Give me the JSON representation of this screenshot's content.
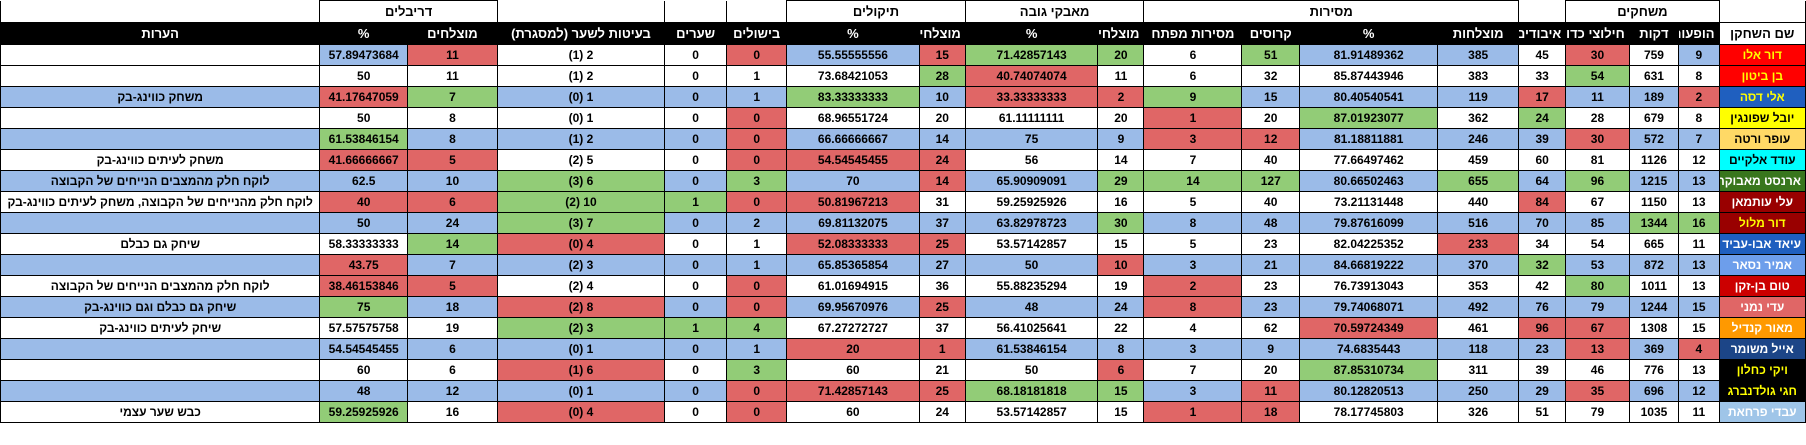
{
  "colors": {
    "blue": "#9bbbe8",
    "green": "#92cc77",
    "red": "#e06666",
    "white": "#ffffff"
  },
  "groups": [
    "משחקים",
    "מסירות",
    "מאבקי גובה",
    "תיקולים",
    "דריבלים"
  ],
  "headers": [
    "שם השחקן",
    "הופעות",
    "דקות",
    "חילוצי כדור",
    "איבודים",
    "מוצלחות",
    "%",
    "קרוסים",
    "מסירות מפתח",
    "מוצלחים",
    "%",
    "מוצלחים",
    "%",
    "בישולים",
    "שערים",
    "בעיטות לשער (למסגרת)",
    "מוצלחים",
    "%",
    "הערות"
  ],
  "players": [
    {
      "name": "דור אלו",
      "name_bg": "#ff0000",
      "name_fg": "#ffff00",
      "cells": [
        "9",
        "759",
        "30",
        "45",
        "385",
        "81.91489362",
        "51",
        "6",
        "20",
        "71.42857143",
        "15",
        "55.55555556",
        "0",
        "0",
        "2 (1)",
        "11",
        "57.89473684",
        ""
      ],
      "colors": [
        "b",
        "w",
        "r",
        "w",
        "b",
        "b",
        "g",
        "w",
        "g",
        "g",
        "r",
        "b",
        "r",
        "w",
        "w",
        "r",
        "b",
        "w"
      ]
    },
    {
      "name": "בן ביטון",
      "name_bg": "#ff0000",
      "name_fg": "#ffff00",
      "cells": [
        "8",
        "631",
        "54",
        "33",
        "383",
        "85.87443946",
        "32",
        "6",
        "11",
        "40.74074074",
        "28",
        "73.68421053",
        "1",
        "0",
        "2 (1)",
        "11",
        "50",
        ""
      ],
      "colors": [
        "w",
        "w",
        "g",
        "w",
        "w",
        "w",
        "w",
        "w",
        "w",
        "r",
        "g",
        "w",
        "w",
        "w",
        "w",
        "w",
        "w",
        "w"
      ]
    },
    {
      "name": "אלי דסה",
      "name_bg": "#1f5fbf",
      "name_fg": "#ffff00",
      "cells": [
        "2",
        "189",
        "11",
        "17",
        "119",
        "80.40540541",
        "15",
        "9",
        "2",
        "33.33333333",
        "10",
        "83.33333333",
        "1",
        "0",
        "1 (0)",
        "7",
        "41.17647059",
        "משחק כווינג-בק"
      ],
      "colors": [
        "r",
        "b",
        "b",
        "r",
        "b",
        "b",
        "b",
        "g",
        "r",
        "r",
        "b",
        "g",
        "b",
        "b",
        "b",
        "g",
        "r",
        "b"
      ]
    },
    {
      "name": "יובל שפונגין",
      "name_bg": "#ffff00",
      "name_fg": "#000000",
      "cells": [
        "8",
        "679",
        "28",
        "24",
        "362",
        "87.01923077",
        "20",
        "1",
        "20",
        "61.11111111",
        "20",
        "68.96551724",
        "0",
        "0",
        "1 (0)",
        "8",
        "50",
        ""
      ],
      "colors": [
        "w",
        "w",
        "w",
        "g",
        "w",
        "g",
        "w",
        "r",
        "w",
        "w",
        "w",
        "w",
        "r",
        "w",
        "w",
        "w",
        "w",
        "w"
      ]
    },
    {
      "name": "עופר ורטה",
      "name_bg": "#ffd966",
      "name_fg": "#000000",
      "cells": [
        "7",
        "572",
        "30",
        "39",
        "246",
        "81.18811881",
        "12",
        "3",
        "9",
        "75",
        "14",
        "66.66666667",
        "0",
        "0",
        "2 (1)",
        "8",
        "61.53846154",
        ""
      ],
      "colors": [
        "b",
        "b",
        "r",
        "b",
        "b",
        "b",
        "r",
        "r",
        "b",
        "b",
        "b",
        "b",
        "r",
        "b",
        "b",
        "b",
        "g",
        "b"
      ]
    },
    {
      "name": "עודד אלקיים",
      "name_bg": "#00ffff",
      "name_fg": "#000000",
      "cells": [
        "12",
        "1126",
        "81",
        "60",
        "459",
        "77.66497462",
        "40",
        "7",
        "14",
        "56",
        "24",
        "54.54545455",
        "0",
        "0",
        "5 (2)",
        "5",
        "41.66666667",
        "משחק לעיתים כווינג-בק"
      ],
      "colors": [
        "w",
        "w",
        "w",
        "w",
        "w",
        "w",
        "w",
        "w",
        "w",
        "w",
        "r",
        "r",
        "r",
        "w",
        "w",
        "r",
        "r",
        "w"
      ]
    },
    {
      "name": "ארנסט מאבוקה",
      "name_bg": "#38761d",
      "name_fg": "#ffffff",
      "cells": [
        "13",
        "1215",
        "96",
        "64",
        "655",
        "80.66502463",
        "127",
        "14",
        "29",
        "65.90909091",
        "14",
        "70",
        "3",
        "0",
        "6 (3)",
        "10",
        "62.5",
        "לוקח חלק מהמצבים הנייחים של הקבוצה"
      ],
      "colors": [
        "b",
        "b",
        "g",
        "b",
        "g",
        "b",
        "g",
        "g",
        "g",
        "b",
        "r",
        "b",
        "g",
        "b",
        "g",
        "b",
        "b",
        "b"
      ]
    },
    {
      "name": "עלי עותמאן",
      "name_bg": "#990000",
      "name_fg": "#ffffff",
      "cells": [
        "13",
        "1150",
        "67",
        "84",
        "440",
        "73.21131448",
        "40",
        "5",
        "16",
        "59.25925926",
        "31",
        "50.81967213",
        "0",
        "1",
        "10 (2)",
        "6",
        "40",
        "לוקח חלק מהנייחים של הקבוצה, משחק לעיתים כווינג-בק"
      ],
      "colors": [
        "w",
        "w",
        "w",
        "r",
        "w",
        "w",
        "w",
        "w",
        "w",
        "w",
        "w",
        "r",
        "r",
        "g",
        "g",
        "r",
        "r",
        "w"
      ]
    },
    {
      "name": "דור מלול",
      "name_bg": "#990000",
      "name_fg": "#ffff00",
      "cells": [
        "16",
        "1344",
        "85",
        "70",
        "516",
        "79.87616099",
        "48",
        "8",
        "30",
        "63.82978723",
        "37",
        "69.81132075",
        "2",
        "0",
        "7 (3)",
        "24",
        "50",
        ""
      ],
      "colors": [
        "g",
        "g",
        "b",
        "b",
        "b",
        "b",
        "b",
        "b",
        "g",
        "b",
        "b",
        "b",
        "b",
        "b",
        "g",
        "b",
        "b",
        "b"
      ]
    },
    {
      "name": "עיאד אבו-עביד",
      "name_bg": "#1f5fbf",
      "name_fg": "#ffffff",
      "cells": [
        "11",
        "665",
        "54",
        "34",
        "233",
        "82.04225352",
        "23",
        "5",
        "15",
        "53.57142857",
        "25",
        "52.08333333",
        "1",
        "0",
        "4 (0)",
        "14",
        "58.33333333",
        "שיחק גם כבלם"
      ],
      "colors": [
        "w",
        "w",
        "w",
        "w",
        "r",
        "w",
        "w",
        "w",
        "w",
        "w",
        "r",
        "r",
        "w",
        "w",
        "r",
        "g",
        "w",
        "w"
      ]
    },
    {
      "name": "אמיר נסאר",
      "name_bg": "#6d9eeb",
      "name_fg": "#ffffff",
      "cells": [
        "13",
        "872",
        "53",
        "32",
        "370",
        "84.66819222",
        "21",
        "3",
        "10",
        "50",
        "27",
        "65.85365854",
        "1",
        "0",
        "3 (2)",
        "7",
        "43.75",
        ""
      ],
      "colors": [
        "b",
        "b",
        "b",
        "g",
        "b",
        "b",
        "b",
        "b",
        "r",
        "b",
        "b",
        "b",
        "b",
        "b",
        "b",
        "b",
        "r",
        "b"
      ]
    },
    {
      "name": "טום בן-זקן",
      "name_bg": "#cc0000",
      "name_fg": "#ffffff",
      "cells": [
        "13",
        "1011",
        "80",
        "42",
        "353",
        "76.73913043",
        "23",
        "2",
        "19",
        "55.88235294",
        "36",
        "61.01694915",
        "0",
        "0",
        "4 (2)",
        "5",
        "38.46153846",
        "לוקח חלק מהמצבים הנייחים של הקבוצה"
      ],
      "colors": [
        "w",
        "w",
        "g",
        "w",
        "w",
        "w",
        "w",
        "r",
        "w",
        "w",
        "w",
        "w",
        "r",
        "w",
        "w",
        "r",
        "r",
        "w"
      ]
    },
    {
      "name": "עדי נמני",
      "name_bg": "#e06666",
      "name_fg": "#ffffff",
      "cells": [
        "15",
        "1244",
        "79",
        "76",
        "492",
        "79.74068071",
        "23",
        "8",
        "24",
        "48",
        "25",
        "69.95670976",
        "0",
        "0",
        "8 (2)",
        "18",
        "75",
        "שיחק גם כבלם וגם כווינג-בק"
      ],
      "colors": [
        "b",
        "b",
        "b",
        "b",
        "b",
        "b",
        "b",
        "r",
        "b",
        "b",
        "r",
        "b",
        "r",
        "b",
        "r",
        "b",
        "g",
        "b"
      ]
    },
    {
      "name": "מאור קנדיל",
      "name_bg": "#ff9900",
      "name_fg": "#ffffff",
      "cells": [
        "15",
        "1308",
        "67",
        "96",
        "461",
        "70.59724349",
        "62",
        "4",
        "22",
        "56.41025641",
        "37",
        "67.27272727",
        "4",
        "1",
        "3 (2)",
        "19",
        "57.57575758",
        "שיחק לעיתים כווינג-בק"
      ],
      "colors": [
        "w",
        "w",
        "r",
        "r",
        "w",
        "r",
        "w",
        "w",
        "w",
        "w",
        "w",
        "w",
        "g",
        "g",
        "g",
        "w",
        "w",
        "w"
      ]
    },
    {
      "name": "אייל משומר",
      "name_bg": "#1c4587",
      "name_fg": "#ffffff",
      "cells": [
        "4",
        "369",
        "13",
        "23",
        "118",
        "74.6835443",
        "9",
        "3",
        "8",
        "61.53846154",
        "1",
        "20",
        "1",
        "0",
        "1 (0)",
        "6",
        "54.54545455",
        ""
      ],
      "colors": [
        "r",
        "b",
        "r",
        "b",
        "b",
        "b",
        "b",
        "b",
        "b",
        "b",
        "r",
        "r",
        "b",
        "b",
        "b",
        "b",
        "b",
        "b"
      ]
    },
    {
      "name": "ויקי כחלון",
      "name_bg": "#000000",
      "name_fg": "#ffff00",
      "cells": [
        "13",
        "776",
        "46",
        "39",
        "311",
        "87.85310734",
        "20",
        "7",
        "6",
        "50",
        "21",
        "60",
        "3",
        "0",
        "6 (1)",
        "6",
        "60",
        ""
      ],
      "colors": [
        "w",
        "w",
        "w",
        "w",
        "w",
        "g",
        "w",
        "w",
        "r",
        "w",
        "w",
        "w",
        "g",
        "w",
        "r",
        "w",
        "w",
        "w"
      ]
    },
    {
      "name": "חגי גולדנברג",
      "name_bg": "#000000",
      "name_fg": "#ffff00",
      "cells": [
        "12",
        "696",
        "35",
        "29",
        "250",
        "80.12820513",
        "11",
        "3",
        "15",
        "68.18181818",
        "25",
        "71.42857143",
        "0",
        "0",
        "1 (0)",
        "12",
        "48",
        ""
      ],
      "colors": [
        "b",
        "b",
        "r",
        "b",
        "b",
        "b",
        "r",
        "b",
        "g",
        "g",
        "r",
        "r",
        "r",
        "b",
        "b",
        "b",
        "b",
        "b"
      ]
    },
    {
      "name": "עבדי פרחאת",
      "name_bg": "#9fc5e8",
      "name_fg": "#ffffff",
      "cells": [
        "11",
        "1035",
        "79",
        "51",
        "326",
        "78.17745803",
        "18",
        "1",
        "15",
        "53.57142857",
        "24",
        "60",
        "0",
        "0",
        "4 (0)",
        "16",
        "59.25925926",
        "כבש שער עצמי"
      ],
      "colors": [
        "w",
        "w",
        "w",
        "w",
        "w",
        "w",
        "r",
        "r",
        "w",
        "w",
        "w",
        "w",
        "r",
        "w",
        "r",
        "w",
        "g",
        "w"
      ]
    }
  ]
}
